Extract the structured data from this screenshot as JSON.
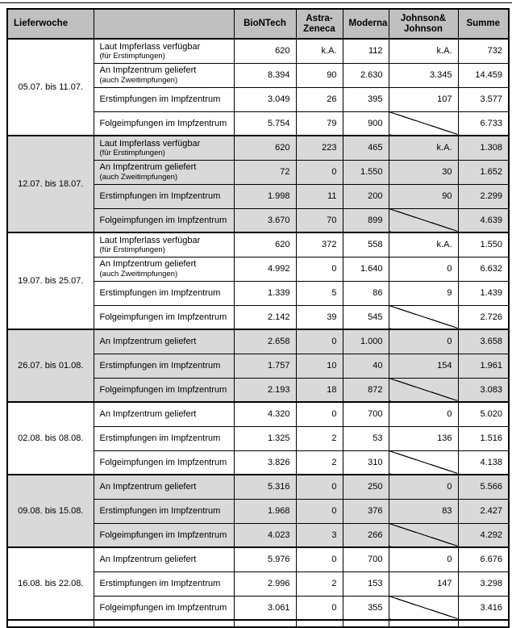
{
  "decor": {
    "top_rule_color": "#000000"
  },
  "table": {
    "colors": {
      "header_bg": "#c0c0c0",
      "band_bg": "#d9d9d9",
      "border": "#000000"
    },
    "headers": [
      "Lieferwoche",
      "",
      "BioNTech",
      "Astra-\nZeneca",
      "Moderna",
      "Johnson&\nJohnson",
      "Summe"
    ],
    "column_keys": [
      "biontech",
      "astrazeneca",
      "moderna",
      "johnson_johnson",
      "summe"
    ],
    "groups": [
      {
        "week": "05.07. bis 11.07.",
        "shaded": false,
        "rows": [
          {
            "label": "Laut Impferlass verfügbar",
            "sublabel": "(für Erstimpfungen)",
            "values": [
              "620",
              "k.A.",
              "112",
              "k.A.",
              "732"
            ]
          },
          {
            "label": "An Impfzentrum geliefert",
            "sublabel": "(auch Zweitimpfungen)",
            "values": [
              "8.394",
              "90",
              "2.630",
              "3.345",
              "14.459"
            ]
          },
          {
            "label": "Erstimpfungen im Impfzentrum",
            "values": [
              "3.049",
              "26",
              "395",
              "107",
              "3.577"
            ]
          },
          {
            "label": "Folgeimpfungen im Impfzentrum",
            "values": [
              "5.754",
              "79",
              "900",
              null,
              "6.733"
            ]
          }
        ]
      },
      {
        "week": "12.07. bis 18.07.",
        "shaded": true,
        "rows": [
          {
            "label": "Laut Impferlass verfügbar",
            "sublabel": "(für Erstimpfungen)",
            "values": [
              "620",
              "223",
              "465",
              "k.A.",
              "1.308"
            ]
          },
          {
            "label": "An Impfzentrum geliefert",
            "sublabel": "(auch Zweitimpfungen)",
            "values": [
              "72",
              "0",
              "1.550",
              "30",
              "1.652"
            ]
          },
          {
            "label": "Erstimpfungen im Impfzentrum",
            "values": [
              "1.998",
              "11",
              "200",
              "90",
              "2.299"
            ]
          },
          {
            "label": "Folgeimpfungen im Impfzentrum",
            "values": [
              "3.670",
              "70",
              "899",
              null,
              "4.639"
            ]
          }
        ]
      },
      {
        "week": "19.07. bis 25.07.",
        "shaded": false,
        "rows": [
          {
            "label": "Laut Impferlass verfügbar",
            "sublabel": "(für Erstimpfungen)",
            "values": [
              "620",
              "372",
              "558",
              "k.A.",
              "1.550"
            ]
          },
          {
            "label": "An Impfzentrum geliefert",
            "sublabel": "(auch Zweitimpfungen)",
            "values": [
              "4.992",
              "0",
              "1.640",
              "0",
              "6.632"
            ]
          },
          {
            "label": "Erstimpfungen im Impfzentrum",
            "values": [
              "1.339",
              "5",
              "86",
              "9",
              "1.439"
            ]
          },
          {
            "label": "Folgeimpfungen im Impfzentrum",
            "values": [
              "2.142",
              "39",
              "545",
              null,
              "2.726"
            ]
          }
        ]
      },
      {
        "week": "26.07. bis 01.08.",
        "shaded": true,
        "rows": [
          {
            "label": "An Impfzentrum geliefert",
            "values": [
              "2.658",
              "0",
              "1.000",
              "0",
              "3.658"
            ]
          },
          {
            "label": "Erstimpfungen im Impfzentrum",
            "values": [
              "1.757",
              "10",
              "40",
              "154",
              "1.961"
            ]
          },
          {
            "label": "Folgeimpfungen im Impfzentrum",
            "values": [
              "2.193",
              "18",
              "872",
              null,
              "3.083"
            ]
          }
        ]
      },
      {
        "week": "02.08. bis 08.08.",
        "shaded": false,
        "rows": [
          {
            "label": "An Impfzentrum geliefert",
            "values": [
              "4.320",
              "0",
              "700",
              "0",
              "5.020"
            ]
          },
          {
            "label": "Erstimpfungen im Impfzentrum",
            "values": [
              "1.325",
              "2",
              "53",
              "136",
              "1.516"
            ]
          },
          {
            "label": "Folgeimpfungen im Impfzentrum",
            "values": [
              "3.826",
              "2",
              "310",
              null,
              "4.138"
            ]
          }
        ]
      },
      {
        "week": "09.08. bis 15.08.",
        "shaded": true,
        "rows": [
          {
            "label": "An Impfzentrum geliefert",
            "values": [
              "5.316",
              "0",
              "250",
              "0",
              "5.566"
            ]
          },
          {
            "label": "Erstimpfungen im Impfzentrum",
            "values": [
              "1.968",
              "0",
              "376",
              "83",
              "2.427"
            ]
          },
          {
            "label": "Folgeimpfungen im Impfzentrum",
            "values": [
              "4.023",
              "3",
              "266",
              null,
              "4.292"
            ]
          }
        ]
      },
      {
        "week": "16.08. bis 22.08.",
        "shaded": false,
        "rows": [
          {
            "label": "An Impfzentrum geliefert",
            "values": [
              "5.976",
              "0",
              "700",
              "0",
              "6.676"
            ]
          },
          {
            "label": "Erstimpfungen im Impfzentrum",
            "values": [
              "2.996",
              "2",
              "153",
              "147",
              "3.298"
            ]
          },
          {
            "label": "Folgeimpfungen im Impfzentrum",
            "values": [
              "3.061",
              "0",
              "355",
              null,
              "3.416"
            ]
          }
        ]
      }
    ],
    "partial_next_group_visible": true
  }
}
